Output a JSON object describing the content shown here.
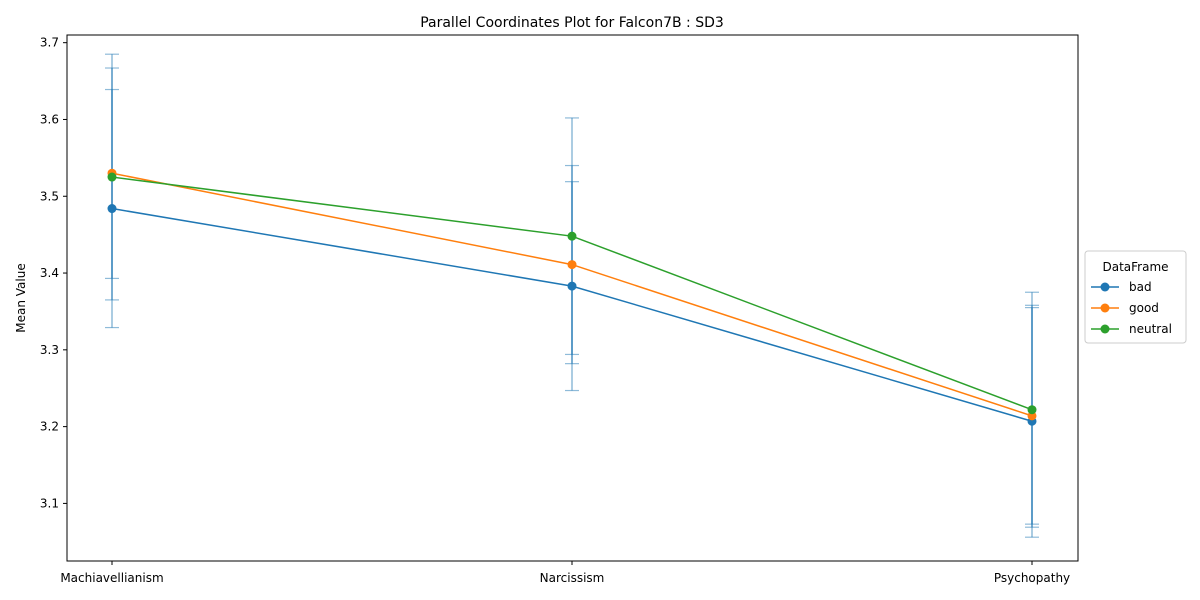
{
  "chart_data": {
    "type": "line",
    "title": "Parallel Coordinates Plot for Falcon7B : SD3",
    "xlabel": "",
    "ylabel": "Mean Value",
    "categories": [
      "Machiavellianism",
      "Narcissism",
      "Psychopathy"
    ],
    "ylim": [
      3.025,
      3.71
    ],
    "yticks": [
      3.1,
      3.2,
      3.3,
      3.4,
      3.5,
      3.6,
      3.7
    ],
    "yticklabels": [
      "3.1",
      "3.2",
      "3.3",
      "3.4",
      "3.5",
      "3.6",
      "3.7"
    ],
    "grid": false,
    "legend": {
      "title": "DataFrame",
      "placement": "right"
    },
    "errorbar_color": "#1f77b4",
    "series": [
      {
        "name": "bad",
        "color": "#1f77b4",
        "values": [
          3.484,
          3.383,
          3.207
        ],
        "errors": [
          0.155,
          0.136,
          0.151
        ]
      },
      {
        "name": "good",
        "color": "#ff7f0e",
        "values": [
          3.53,
          3.411,
          3.214
        ],
        "errors": [
          0.137,
          0.129,
          0.141
        ]
      },
      {
        "name": "neutral",
        "color": "#2ca02c",
        "values": [
          3.525,
          3.448,
          3.222
        ],
        "errors": [
          0.16,
          0.154,
          0.153
        ]
      }
    ]
  }
}
